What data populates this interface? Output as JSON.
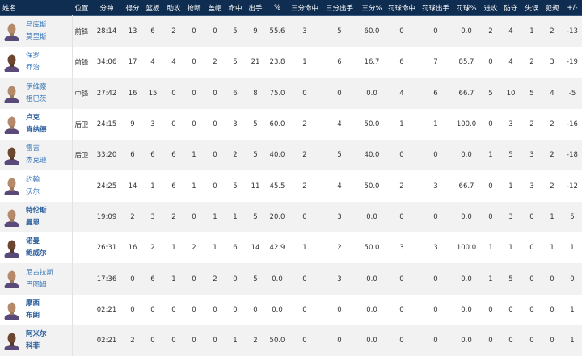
{
  "header": [
    "姓名",
    "位置",
    "分钟",
    "得分",
    "篮板",
    "助攻",
    "抢断",
    "盖帽",
    "命中",
    "出手",
    "%",
    "三分命中",
    "三分出手",
    "三分%",
    "罚球命中",
    "罚球出手",
    "罚球%",
    "进攻",
    "防守",
    "失误",
    "犯规",
    "+/-"
  ],
  "colors": {
    "header_bg": "#0f2d50",
    "name_link": "#3b78b8",
    "row_alt": "#f2f2f2"
  },
  "players": [
    {
      "name1": "马库斯",
      "name2": "莫里斯",
      "bold": false,
      "stats": [
        "前锋",
        "28:14",
        "13",
        "6",
        "2",
        "0",
        "0",
        "5",
        "9",
        "55.6",
        "3",
        "5",
        "60.0",
        "0",
        "0",
        "0.0",
        "2",
        "4",
        "1",
        "2",
        "-13"
      ]
    },
    {
      "name1": "保罗",
      "name2": "乔治",
      "bold": false,
      "stats": [
        "前锋",
        "34:06",
        "17",
        "4",
        "4",
        "0",
        "2",
        "5",
        "21",
        "23.8",
        "1",
        "6",
        "16.7",
        "6",
        "7",
        "85.7",
        "0",
        "4",
        "2",
        "3",
        "-19"
      ]
    },
    {
      "name1": "伊维察",
      "name2": "祖巴茨",
      "bold": false,
      "stats": [
        "中锋",
        "27:42",
        "16",
        "15",
        "0",
        "0",
        "0",
        "6",
        "8",
        "75.0",
        "0",
        "0",
        "0.0",
        "4",
        "6",
        "66.7",
        "5",
        "10",
        "5",
        "4",
        "-5"
      ]
    },
    {
      "name1": "卢克",
      "name2": "肯纳德",
      "bold": true,
      "stats": [
        "后卫",
        "24:15",
        "9",
        "3",
        "0",
        "0",
        "0",
        "3",
        "5",
        "60.0",
        "2",
        "4",
        "50.0",
        "1",
        "1",
        "100.0",
        "0",
        "3",
        "2",
        "2",
        "-16"
      ]
    },
    {
      "name1": "雷吉",
      "name2": "杰克逊",
      "bold": false,
      "stats": [
        "后卫",
        "33:20",
        "6",
        "6",
        "6",
        "1",
        "0",
        "2",
        "5",
        "40.0",
        "2",
        "5",
        "40.0",
        "0",
        "0",
        "0.0",
        "1",
        "5",
        "3",
        "2",
        "-18"
      ]
    },
    {
      "name1": "约翰",
      "name2": "沃尔",
      "bold": false,
      "stats": [
        "",
        "24:25",
        "14",
        "1",
        "6",
        "1",
        "0",
        "5",
        "11",
        "45.5",
        "2",
        "4",
        "50.0",
        "2",
        "3",
        "66.7",
        "0",
        "1",
        "3",
        "2",
        "-12"
      ]
    },
    {
      "name1": "特伦斯",
      "name2": "曼恩",
      "bold": true,
      "stats": [
        "",
        "19:09",
        "2",
        "3",
        "2",
        "0",
        "1",
        "1",
        "5",
        "20.0",
        "0",
        "3",
        "0.0",
        "0",
        "0",
        "0.0",
        "0",
        "3",
        "0",
        "1",
        "5"
      ]
    },
    {
      "name1": "诺曼",
      "name2": "鲍威尔",
      "bold": true,
      "stats": [
        "",
        "26:31",
        "16",
        "2",
        "1",
        "2",
        "1",
        "6",
        "14",
        "42.9",
        "1",
        "2",
        "50.0",
        "3",
        "3",
        "100.0",
        "1",
        "1",
        "0",
        "1",
        "1"
      ]
    },
    {
      "name1": "尼古拉斯",
      "name2": "巴图姆",
      "bold": false,
      "stats": [
        "",
        "17:36",
        "0",
        "6",
        "1",
        "0",
        "2",
        "0",
        "5",
        "0.0",
        "0",
        "3",
        "0.0",
        "0",
        "0",
        "0.0",
        "1",
        "5",
        "0",
        "0",
        "0"
      ]
    },
    {
      "name1": "摩西",
      "name2": "布朗",
      "bold": true,
      "stats": [
        "",
        "02:21",
        "0",
        "0",
        "0",
        "0",
        "0",
        "0",
        "0",
        "0.0",
        "0",
        "0",
        "0.0",
        "0",
        "0",
        "0.0",
        "0",
        "0",
        "0",
        "0",
        "1"
      ]
    },
    {
      "name1": "阿米尔",
      "name2": "科菲",
      "bold": true,
      "stats": [
        "",
        "02:21",
        "2",
        "0",
        "0",
        "0",
        "0",
        "1",
        "2",
        "50.0",
        "0",
        "0",
        "0.0",
        "0",
        "0",
        "0.0",
        "0",
        "0",
        "0",
        "0",
        "1"
      ]
    }
  ]
}
